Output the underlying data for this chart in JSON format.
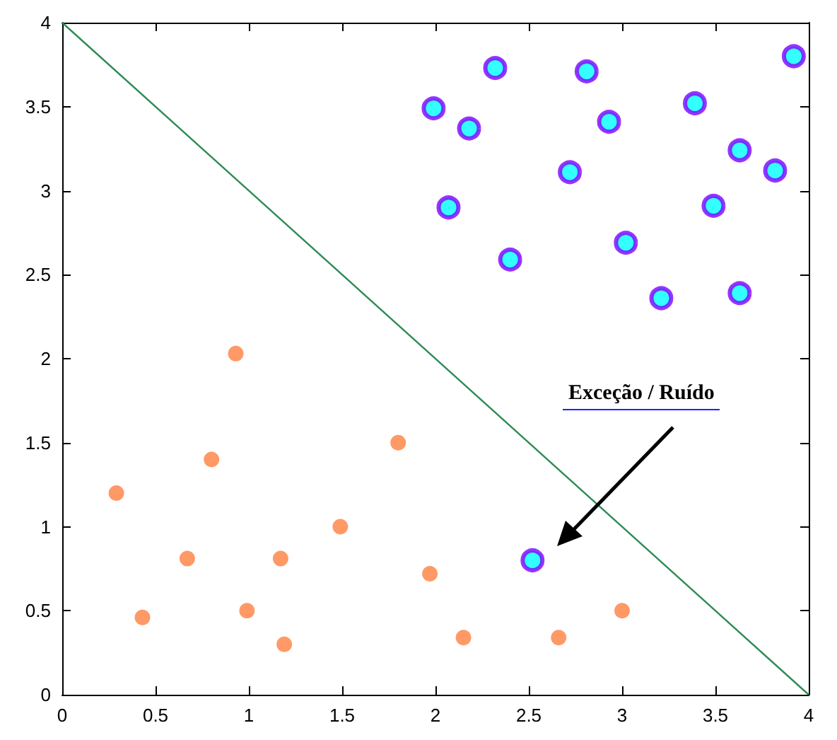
{
  "chart_data": {
    "type": "scatter",
    "xlim": [
      0,
      4
    ],
    "ylim": [
      0,
      4
    ],
    "xticks": [
      0,
      0.5,
      1,
      1.5,
      2,
      2.5,
      3,
      3.5,
      4
    ],
    "yticks": [
      0,
      0.5,
      1,
      1.5,
      2,
      2.5,
      3,
      3.5,
      4
    ],
    "series": [
      {
        "marker": "circle",
        "color": "#00ffff",
        "x": [
          1.99,
          2.18,
          2.32,
          2.07,
          2.4,
          2.81,
          2.93,
          2.72,
          3.02,
          3.21,
          3.39,
          3.63,
          3.49,
          3.63,
          3.82,
          3.92,
          2.52
        ],
        "values": [
          3.49,
          3.37,
          3.73,
          2.9,
          2.59,
          3.71,
          3.41,
          3.11,
          2.69,
          2.36,
          3.52,
          3.24,
          2.91,
          2.39,
          3.12,
          3.8,
          0.8
        ]
      },
      {
        "marker": "circle",
        "color": "#ff7f40",
        "x": [
          0.29,
          0.8,
          1.8,
          1.49,
          0.67,
          1.17,
          1.97,
          0.43,
          0.99,
          1.19,
          2.15,
          2.66,
          3.0,
          0.93
        ],
        "values": [
          1.2,
          1.4,
          1.5,
          1.0,
          0.81,
          0.81,
          0.72,
          0.46,
          0.5,
          0.3,
          0.34,
          0.34,
          0.5,
          2.03
        ]
      },
      {
        "type": "line",
        "marker": "none",
        "line_style": "solid",
        "color": "#2e8b57",
        "x": [
          0,
          4
        ],
        "values": [
          4,
          0
        ]
      }
    ],
    "annotations": [
      "Exceção / Ruído"
    ]
  }
}
